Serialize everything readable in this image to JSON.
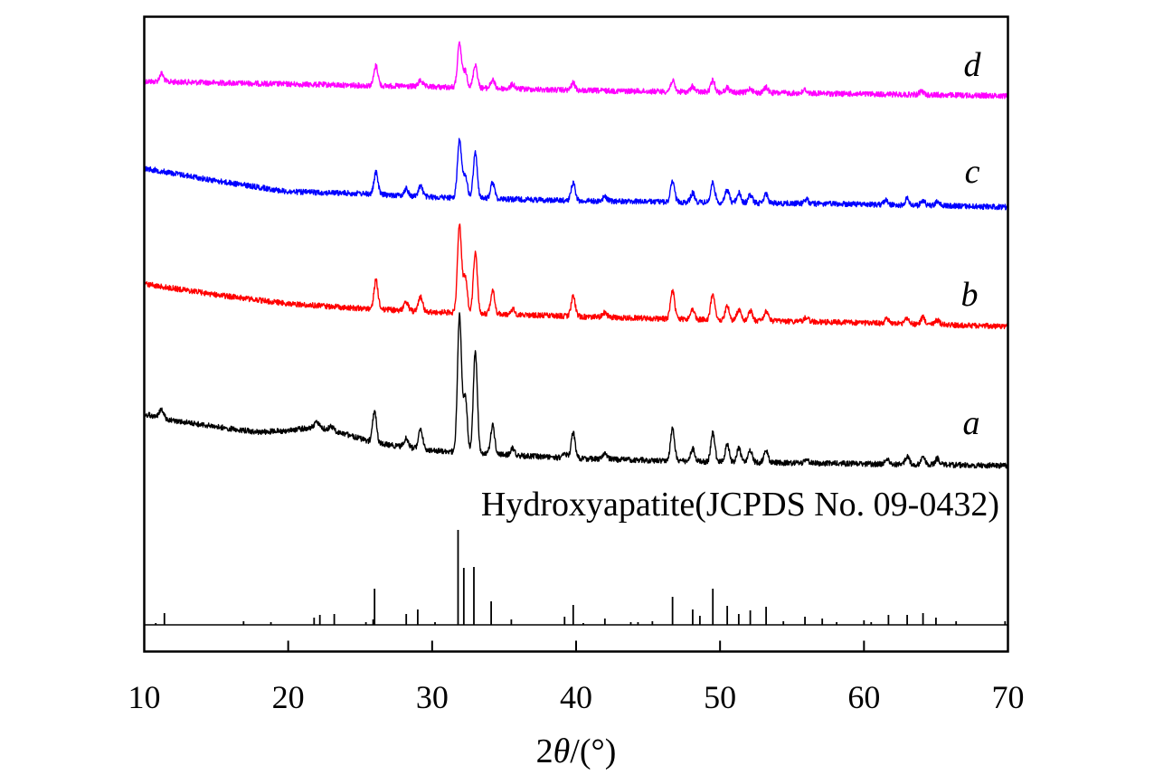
{
  "chart_data": {
    "type": "line",
    "xlabel_prefix": "2",
    "xlabel_theta": "θ",
    "xlabel_suffix": "/(°)",
    "ylabel": "",
    "xlim": [
      10,
      70
    ],
    "xticks": [
      "10",
      "20",
      "30",
      "40",
      "50",
      "60",
      "70"
    ],
    "grid": false,
    "legend": "inline labels at right of each trace",
    "series": [
      {
        "name": "d",
        "color": "#ff00ff",
        "baseline": [
          [
            10,
            90
          ],
          [
            20,
            93
          ],
          [
            30,
            96
          ],
          [
            40,
            100
          ],
          [
            50,
            102
          ],
          [
            60,
            104
          ],
          [
            70,
            106
          ]
        ],
        "noise": 3,
        "peaks": [
          [
            11.2,
            9
          ],
          [
            26.1,
            22
          ],
          [
            29.2,
            7
          ],
          [
            31.9,
            48
          ],
          [
            32.3,
            18
          ],
          [
            33.0,
            26
          ],
          [
            34.2,
            9
          ],
          [
            35.6,
            5
          ],
          [
            39.8,
            8
          ],
          [
            46.7,
            12
          ],
          [
            48.1,
            6
          ],
          [
            49.5,
            13
          ],
          [
            50.5,
            5
          ],
          [
            52.1,
            5
          ],
          [
            53.2,
            6
          ],
          [
            55.9,
            4
          ],
          [
            64.0,
            4
          ]
        ]
      },
      {
        "name": "c",
        "color": "#0000ff",
        "baseline": [
          [
            10,
            186
          ],
          [
            15,
            200
          ],
          [
            20,
            212
          ],
          [
            25,
            214
          ],
          [
            30,
            218
          ],
          [
            40,
            222
          ],
          [
            50,
            224
          ],
          [
            60,
            226
          ],
          [
            70,
            229
          ]
        ],
        "noise": 3,
        "peaks": [
          [
            26.1,
            24
          ],
          [
            28.2,
            8
          ],
          [
            29.2,
            12
          ],
          [
            31.9,
            64
          ],
          [
            32.3,
            26
          ],
          [
            33.0,
            50
          ],
          [
            34.2,
            18
          ],
          [
            39.8,
            20
          ],
          [
            42.0,
            5
          ],
          [
            46.7,
            22
          ],
          [
            48.1,
            10
          ],
          [
            49.5,
            22
          ],
          [
            50.5,
            14
          ],
          [
            51.3,
            11
          ],
          [
            52.1,
            9
          ],
          [
            53.2,
            10
          ],
          [
            56.0,
            5
          ],
          [
            61.5,
            5
          ],
          [
            63.0,
            7
          ],
          [
            64.1,
            6
          ],
          [
            65.1,
            5
          ]
        ]
      },
      {
        "name": "b",
        "color": "#ff0000",
        "baseline": [
          [
            10,
            314
          ],
          [
            15,
            326
          ],
          [
            20,
            336
          ],
          [
            25,
            341
          ],
          [
            30,
            345
          ],
          [
            40,
            350
          ],
          [
            50,
            354
          ],
          [
            60,
            357
          ],
          [
            70,
            361
          ]
        ],
        "noise": 3,
        "peaks": [
          [
            26.1,
            32
          ],
          [
            28.2,
            10
          ],
          [
            29.2,
            16
          ],
          [
            31.9,
            96
          ],
          [
            32.3,
            40
          ],
          [
            33.0,
            68
          ],
          [
            34.2,
            26
          ],
          [
            35.6,
            6
          ],
          [
            39.8,
            22
          ],
          [
            42.0,
            5
          ],
          [
            46.7,
            32
          ],
          [
            48.1,
            12
          ],
          [
            49.5,
            30
          ],
          [
            50.5,
            16
          ],
          [
            51.3,
            12
          ],
          [
            52.1,
            11
          ],
          [
            53.2,
            11
          ],
          [
            56.0,
            5
          ],
          [
            61.6,
            5
          ],
          [
            63.0,
            7
          ],
          [
            64.1,
            8
          ],
          [
            65.1,
            5
          ]
        ]
      },
      {
        "name": "a",
        "color": "#000000",
        "baseline": [
          [
            10,
            458
          ],
          [
            12,
            465
          ],
          [
            15,
            472
          ],
          [
            18,
            478
          ],
          [
            20,
            476
          ],
          [
            22,
            472
          ],
          [
            24,
            480
          ],
          [
            26,
            490
          ],
          [
            28,
            494
          ],
          [
            30,
            498
          ],
          [
            35,
            503
          ],
          [
            40,
            507
          ],
          [
            50,
            511
          ],
          [
            60,
            513
          ],
          [
            70,
            515
          ]
        ],
        "noise": 3,
        "peaks": [
          [
            11.2,
            10
          ],
          [
            22.0,
            6
          ],
          [
            23.0,
            5
          ],
          [
            26.0,
            34
          ],
          [
            28.2,
            10
          ],
          [
            29.2,
            22
          ],
          [
            31.9,
            150
          ],
          [
            32.3,
            60
          ],
          [
            33.0,
            112
          ],
          [
            34.2,
            32
          ],
          [
            35.6,
            8
          ],
          [
            39.2,
            6
          ],
          [
            39.8,
            28
          ],
          [
            42.0,
            7
          ],
          [
            46.7,
            36
          ],
          [
            48.1,
            14
          ],
          [
            49.5,
            32
          ],
          [
            50.5,
            20
          ],
          [
            51.3,
            16
          ],
          [
            52.1,
            14
          ],
          [
            53.2,
            14
          ],
          [
            56.0,
            5
          ],
          [
            61.6,
            6
          ],
          [
            63.0,
            9
          ],
          [
            64.1,
            8
          ],
          [
            65.1,
            7
          ]
        ]
      }
    ],
    "reference": {
      "name": "Hydroxyapatite(JCPDS No. 09-0432)",
      "color": "#000000",
      "baseline_y": 691,
      "sticks": [
        [
          10.8,
          2
        ],
        [
          11.4,
          13
        ],
        [
          16.9,
          4
        ],
        [
          18.8,
          3
        ],
        [
          21.8,
          8
        ],
        [
          22.2,
          11
        ],
        [
          23.2,
          12
        ],
        [
          25.4,
          3
        ],
        [
          25.9,
          6
        ],
        [
          26.0,
          40
        ],
        [
          28.2,
          12
        ],
        [
          29.0,
          17
        ],
        [
          30.2,
          3
        ],
        [
          31.8,
          105
        ],
        [
          32.2,
          63
        ],
        [
          32.9,
          64
        ],
        [
          34.1,
          26
        ],
        [
          35.5,
          6
        ],
        [
          39.2,
          9
        ],
        [
          39.8,
          22
        ],
        [
          40.5,
          2
        ],
        [
          42.0,
          7
        ],
        [
          43.8,
          3
        ],
        [
          44.3,
          3
        ],
        [
          45.3,
          4
        ],
        [
          46.7,
          31
        ],
        [
          48.1,
          17
        ],
        [
          48.6,
          10
        ],
        [
          49.5,
          40
        ],
        [
          50.5,
          21
        ],
        [
          51.3,
          12
        ],
        [
          52.1,
          16
        ],
        [
          53.2,
          20
        ],
        [
          54.4,
          4
        ],
        [
          55.9,
          9
        ],
        [
          57.1,
          7
        ],
        [
          58.1,
          3
        ],
        [
          60.0,
          5
        ],
        [
          60.5,
          3
        ],
        [
          61.7,
          11
        ],
        [
          63.0,
          11
        ],
        [
          64.1,
          13
        ],
        [
          65.0,
          8
        ],
        [
          66.4,
          4
        ],
        [
          69.8,
          4
        ]
      ]
    }
  }
}
